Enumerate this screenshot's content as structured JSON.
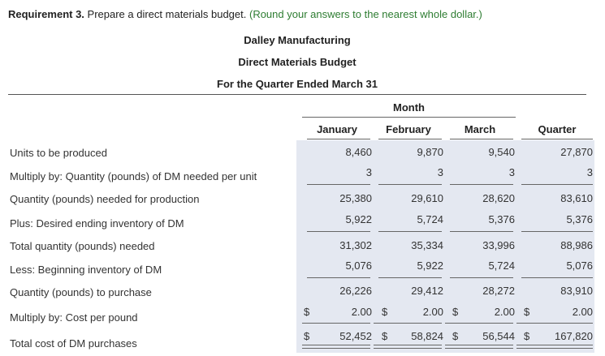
{
  "requirement": {
    "label": "Requirement 3.",
    "text": " Prepare a direct materials budget. ",
    "hint": "(Round your answers to the nearest whole dollar.)"
  },
  "header": {
    "company": "Dalley Manufacturing",
    "title": "Direct Materials Budget",
    "period": "For the Quarter Ended March 31"
  },
  "columns": {
    "group": "Month",
    "names": [
      "January",
      "February",
      "March",
      "Quarter"
    ]
  },
  "rows": [
    {
      "label": "Units to be produced",
      "values": [
        "8,460",
        "9,870",
        "9,540",
        "27,870"
      ]
    },
    {
      "label": "Multiply by: Quantity (pounds) of DM needed per unit",
      "values": [
        "3",
        "3",
        "3",
        "3"
      ]
    },
    {
      "label": "Quantity (pounds) needed for production",
      "values": [
        "25,380",
        "29,610",
        "28,620",
        "83,610"
      ]
    },
    {
      "label": "Plus: Desired ending inventory of DM",
      "values": [
        "5,922",
        "5,724",
        "5,376",
        "5,376"
      ]
    },
    {
      "label": "Total quantity (pounds) needed",
      "values": [
        "31,302",
        "35,334",
        "33,996",
        "88,986"
      ]
    },
    {
      "label": "Less: Beginning inventory of DM",
      "values": [
        "5,076",
        "5,922",
        "5,724",
        "5,076"
      ]
    },
    {
      "label": "Quantity (pounds) to purchase",
      "values": [
        "26,226",
        "29,412",
        "28,272",
        "83,910"
      ]
    },
    {
      "label": "Multiply by: Cost per pound",
      "values": [
        "2.00",
        "2.00",
        "2.00",
        "2.00"
      ]
    },
    {
      "label": "Total cost of DM purchases",
      "values": [
        "52,452",
        "58,824",
        "56,544",
        "167,820"
      ]
    }
  ],
  "currency_symbol": "$"
}
